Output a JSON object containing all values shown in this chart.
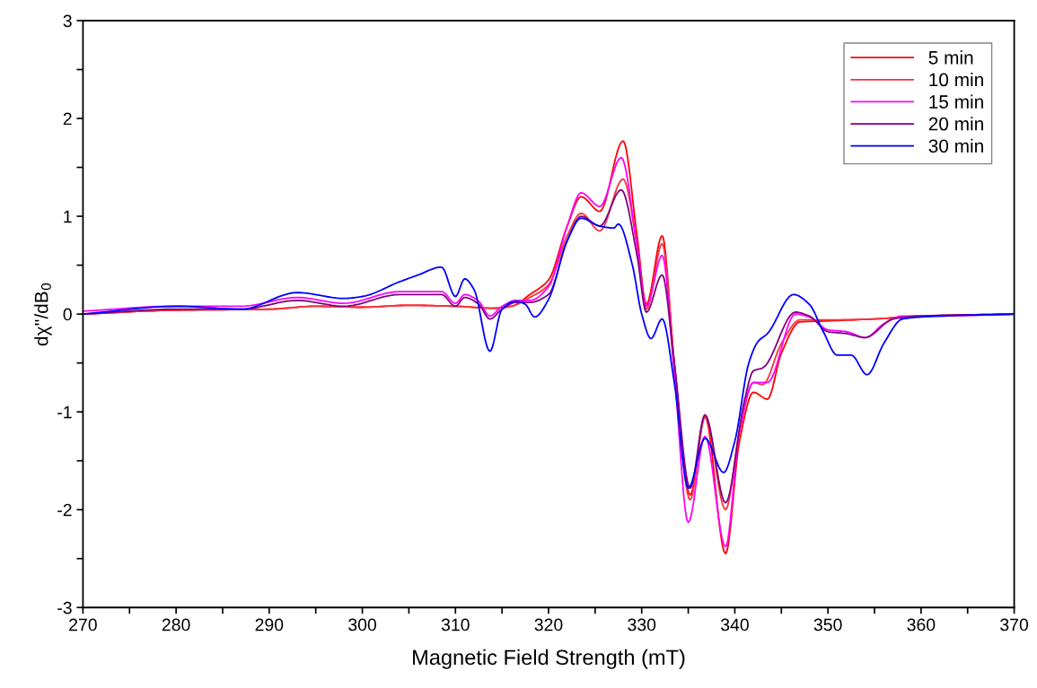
{
  "chart_data": {
    "type": "line",
    "xlabel": "Magnetic Field Strength (mT)",
    "ylabel": "dχ''/dB$_{0}$",
    "xlim": [
      270,
      370
    ],
    "ylim": [
      -3,
      3
    ],
    "xticks": [
      270,
      {
        "value": 275,
        "label": null
      },
      280,
      {
        "value": 285,
        "label": null
      },
      290,
      {
        "value": 295,
        "label": null
      },
      300,
      {
        "value": 305,
        "label": null
      },
      310,
      {
        "value": 315,
        "label": null
      },
      320,
      {
        "value": 325,
        "label": null
      },
      330,
      {
        "value": 335,
        "label": null
      },
      340,
      {
        "value": 345,
        "label": null
      },
      350,
      {
        "value": 355,
        "label": null
      },
      360,
      {
        "value": 365,
        "label": null
      },
      370
    ],
    "yticks": [
      -3,
      {
        "value": -2.5,
        "label": null
      },
      -2,
      {
        "value": -1.5,
        "label": null
      },
      -1,
      {
        "value": -0.5,
        "label": null
      },
      0,
      {
        "value": 0.5,
        "label": null
      },
      1,
      {
        "value": 1.5,
        "label": null
      },
      2,
      {
        "value": 2.5,
        "label": null
      },
      3
    ],
    "grid": false,
    "legend": "top right",
    "marker": "none",
    "line_style": "solid",
    "series": [
      {
        "name": "5 min",
        "color": "#ff0000",
        "x": [
          270,
          280,
          290,
          295,
          300,
          305,
          310,
          314,
          316,
          318,
          320,
          322,
          323.5,
          325.5,
          328,
          329.5,
          330.5,
          332.2,
          333.5,
          335.2,
          336.8,
          339,
          340.5,
          342,
          343.5,
          345,
          347,
          350,
          355,
          360,
          370
        ],
        "values": [
          0,
          0.04,
          0.05,
          0.08,
          0.07,
          0.09,
          0.08,
          0.06,
          0.08,
          0.2,
          0.35,
          0.9,
          1.2,
          1.05,
          1.77,
          0.8,
          0.1,
          0.8,
          -0.5,
          -1.85,
          -1.05,
          -2.45,
          -1.3,
          -0.8,
          -0.87,
          -0.4,
          -0.08,
          -0.07,
          -0.05,
          -0.02,
          0
        ]
      },
      {
        "name": "10 min",
        "color": "#f5333f",
        "x": [
          270,
          280,
          290,
          295,
          300,
          305,
          310,
          314,
          316,
          318,
          320,
          322,
          323.5,
          325.5,
          328,
          329.5,
          330.5,
          332.2,
          333.5,
          335.2,
          336.8,
          339,
          340.5,
          342,
          343,
          345,
          347,
          350,
          355,
          360,
          370
        ],
        "values": [
          0,
          0.04,
          0.05,
          0.08,
          0.07,
          0.09,
          0.08,
          0.06,
          0.08,
          0.17,
          0.3,
          0.8,
          1.03,
          0.85,
          1.38,
          0.7,
          0.05,
          0.72,
          -0.5,
          -1.9,
          -1.05,
          -2.0,
          -1.2,
          -0.7,
          -0.72,
          -0.3,
          -0.06,
          -0.06,
          -0.05,
          -0.02,
          0
        ]
      },
      {
        "name": "15 min",
        "color": "#ff00ff",
        "x": [
          270,
          280,
          287,
          293,
          298,
          304,
          308.5,
          310,
          311,
          312.5,
          313.7,
          315,
          316.5,
          318,
          320,
          322,
          323.5,
          325.5,
          327.8,
          329.5,
          330.5,
          332.2,
          333.5,
          335,
          336.8,
          339,
          340.5,
          342,
          343.5,
          346.5,
          348,
          350,
          352,
          354,
          356,
          358,
          360,
          370
        ],
        "values": [
          0.03,
          0.08,
          0.08,
          0.17,
          0.11,
          0.23,
          0.23,
          0.11,
          0.2,
          0.13,
          -0.02,
          0.08,
          0.14,
          0.14,
          0.28,
          0.9,
          1.24,
          1.1,
          1.6,
          0.7,
          0.08,
          0.6,
          -0.6,
          -2.13,
          -1.25,
          -2.38,
          -1.2,
          -0.7,
          -0.7,
          0.0,
          -0.03,
          -0.16,
          -0.18,
          -0.24,
          -0.1,
          -0.02,
          -0.02,
          0
        ]
      },
      {
        "name": "20 min",
        "color": "#800080",
        "x": [
          270,
          280,
          287,
          293,
          298,
          304,
          308.5,
          310,
          311,
          312.5,
          313.7,
          315,
          316.5,
          318,
          320,
          322,
          323.5,
          325.5,
          327.8,
          329.5,
          330.5,
          332.2,
          333.5,
          335.2,
          336.8,
          339,
          341,
          342,
          343,
          346.5,
          348,
          350,
          352,
          354,
          357,
          360,
          370
        ],
        "values": [
          0,
          0.05,
          0.05,
          0.14,
          0.08,
          0.2,
          0.2,
          0.08,
          0.17,
          0.1,
          -0.05,
          0.05,
          0.12,
          0.12,
          0.2,
          0.75,
          1.0,
          0.9,
          1.27,
          0.6,
          0.02,
          0.4,
          -0.5,
          -1.78,
          -1.03,
          -1.93,
          -0.9,
          -0.58,
          -0.55,
          0.02,
          -0.02,
          -0.18,
          -0.2,
          -0.24,
          -0.05,
          -0.02,
          0
        ]
      },
      {
        "name": "30 min",
        "color": "#0000ff",
        "x": [
          270,
          280,
          287,
          293,
          298,
          300,
          304,
          306,
          308.5,
          310,
          311,
          312,
          313.7,
          315,
          316.5,
          317.5,
          318.5,
          320,
          322,
          323.5,
          325.5,
          327,
          327.5,
          329,
          330,
          331,
          332.2,
          333.5,
          335,
          336.8,
          338.8,
          340,
          341.5,
          342.5,
          343.5,
          346.3,
          348,
          349.5,
          351,
          352.5,
          354.2,
          356,
          358,
          360,
          370
        ],
        "values": [
          0,
          0.08,
          0.05,
          0.22,
          0.16,
          0.18,
          0.33,
          0.4,
          0.48,
          0.18,
          0.36,
          0.25,
          -0.38,
          0.05,
          0.13,
          0.1,
          -0.03,
          0.15,
          0.75,
          0.98,
          0.9,
          0.88,
          0.92,
          0.5,
          0.0,
          -0.25,
          -0.05,
          -0.7,
          -1.78,
          -1.27,
          -1.62,
          -1.3,
          -0.5,
          -0.28,
          -0.2,
          0.2,
          0.1,
          -0.18,
          -0.42,
          -0.42,
          -0.62,
          -0.3,
          -0.05,
          -0.03,
          0
        ]
      }
    ]
  }
}
